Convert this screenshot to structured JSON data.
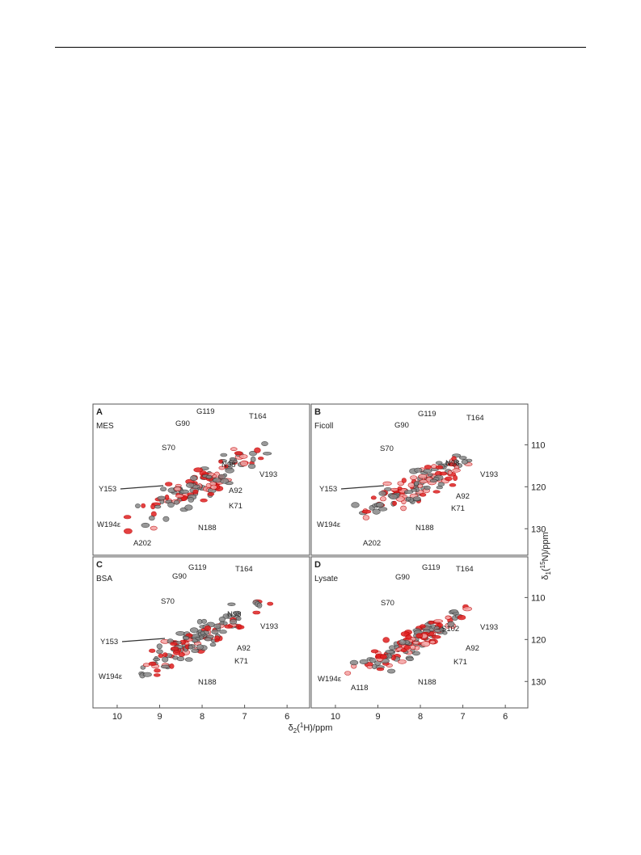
{
  "figure": {
    "panels": [
      {
        "letter": "A",
        "condition": "MES",
        "peak_labels": [
          "G119",
          "T164",
          "G90",
          "S70",
          "N98",
          "V193",
          "Y153",
          "A92",
          "K71",
          "W194ε",
          "N188",
          "A202"
        ]
      },
      {
        "letter": "B",
        "condition": "Ficoll",
        "peak_labels": [
          "G119",
          "T164",
          "G90",
          "S70",
          "N98",
          "V193",
          "Y153",
          "A92",
          "K71",
          "W194ε",
          "N188",
          "A202"
        ]
      },
      {
        "letter": "C",
        "condition": "BSA",
        "peak_labels": [
          "G119",
          "T164",
          "G90",
          "S70",
          "N98",
          "V193",
          "Y153",
          "A92",
          "K71",
          "W194ε",
          "N188"
        ]
      },
      {
        "letter": "D",
        "condition": "Lysate",
        "peak_labels": [
          "G119",
          "T164",
          "G90",
          "S70",
          "S102",
          "V193",
          "A92",
          "K71",
          "W194ε",
          "A118",
          "N188"
        ]
      }
    ],
    "x_axis": {
      "title_parts": [
        "δ",
        "2",
        "(",
        "1",
        "H)/ppm"
      ],
      "ticks": [
        10,
        9,
        8,
        7,
        6
      ],
      "lim": [
        10.57,
        5.47
      ]
    },
    "y_axis": {
      "title_parts": [
        "δ",
        "1",
        "(",
        "15",
        "N)/ppm"
      ],
      "ticks": [
        110,
        120,
        130
      ],
      "lim": [
        100.3,
        136.3
      ]
    }
  }
}
